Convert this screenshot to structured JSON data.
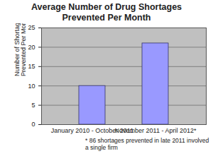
{
  "chart_data": {
    "type": "bar",
    "title": "Average Number of Drug Shortages Prevented Per Month",
    "ylabel": "Number of Shortages Prevented Per Month",
    "categories": [
      "January 2010 - October 2011",
      "November 2011 - April 2012*"
    ],
    "values": [
      10,
      21
    ],
    "color": "#9999ff",
    "ylim": [
      0,
      25
    ],
    "yticks": [
      0,
      5,
      10,
      15,
      20,
      25
    ],
    "grid": true,
    "caption": "* 86 shortages prevented in late 2011 involved a single firm"
  }
}
